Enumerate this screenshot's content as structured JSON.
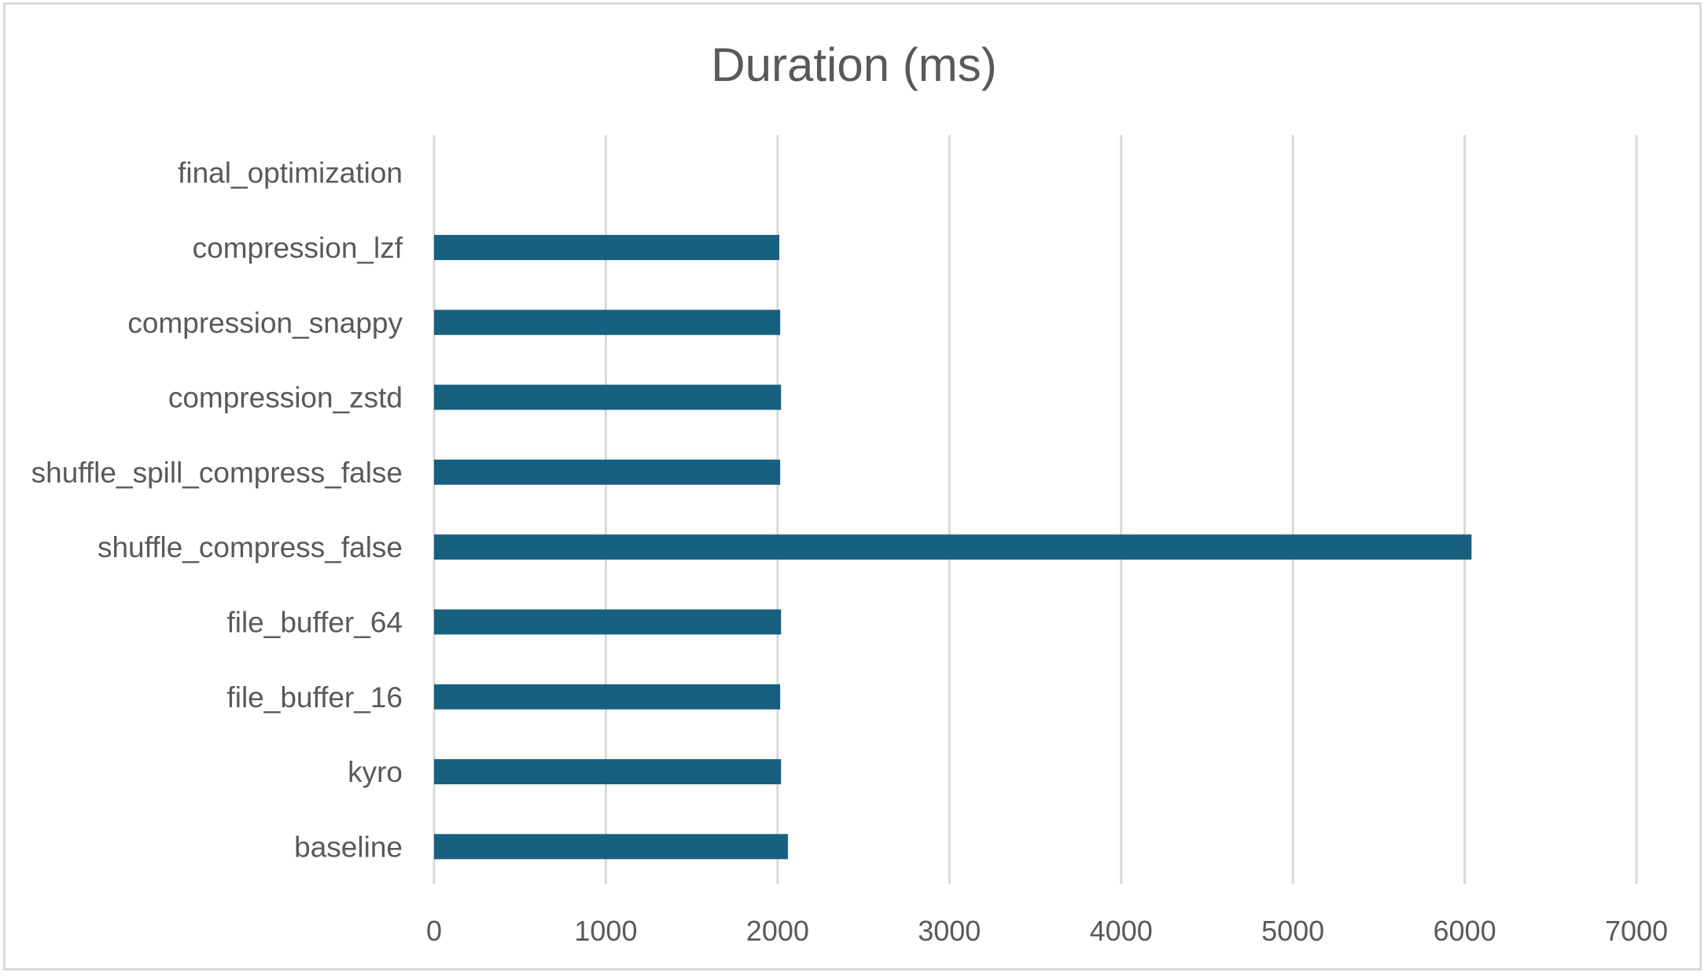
{
  "chart_data": {
    "type": "bar",
    "orientation": "horizontal",
    "title": "Duration (ms)",
    "xlabel": "",
    "ylabel": "",
    "xlim": [
      0,
      7000
    ],
    "x_ticks": [
      0,
      1000,
      2000,
      3000,
      4000,
      5000,
      6000,
      7000
    ],
    "grid": "vertical",
    "legend": "none",
    "bar_color": "#17607f",
    "categories": [
      "baseline",
      "kyro",
      "file_buffer_16",
      "file_buffer_64",
      "shuffle_compress_false",
      "shuffle_spill_compress_false",
      "compression_zstd",
      "compression_snappy",
      "compression_lzf",
      "final_optimization"
    ],
    "values": [
      2060,
      2020,
      2015,
      2020,
      6040,
      2015,
      2020,
      2015,
      2010,
      null
    ]
  }
}
